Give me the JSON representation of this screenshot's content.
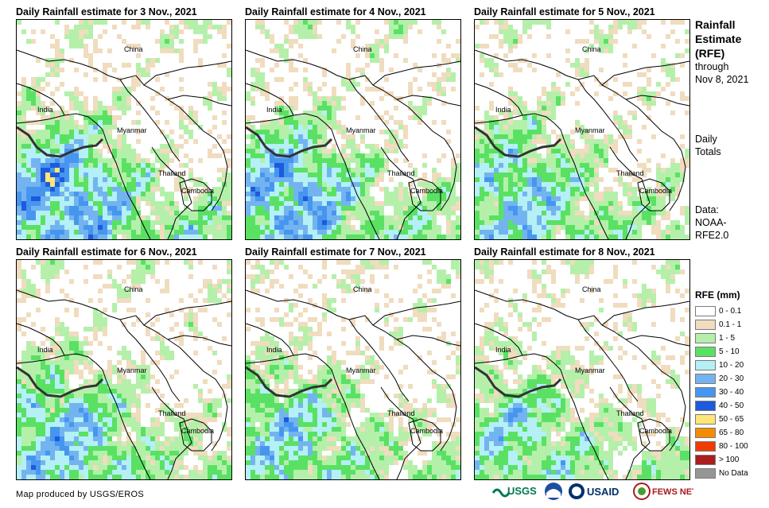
{
  "panels": [
    {
      "title": "Daily Rainfall estimate for 3 Nov., 2021",
      "seed": 3,
      "wet": 0.95
    },
    {
      "title": "Daily Rainfall estimate for 4 Nov., 2021",
      "seed": 4,
      "wet": 0.9
    },
    {
      "title": "Daily Rainfall estimate for 5 Nov., 2021",
      "seed": 5,
      "wet": 0.75
    },
    {
      "title": "Daily Rainfall estimate for 6 Nov., 2021",
      "seed": 6,
      "wet": 0.8
    },
    {
      "title": "Daily Rainfall estimate for 7 Nov., 2021",
      "seed": 7,
      "wet": 0.7
    },
    {
      "title": "Daily Rainfall estimate for 8 Nov., 2021",
      "seed": 8,
      "wet": 0.65
    }
  ],
  "map_labels": {
    "china": "China",
    "india": "India",
    "myanmar": "Myanmar",
    "thailand": "Thailand",
    "cambodia": "Cambodia"
  },
  "side": {
    "title_line1": "Rainfall",
    "title_line2": "Estimate",
    "title_line3": "(RFE)",
    "through_line1": "through",
    "through_line2": "Nov 8, 2021",
    "totals_line1": "Daily",
    "totals_line2": "Totals",
    "data_line1": "Data:",
    "data_line2": "NOAA-",
    "data_line3": "RFE2.0"
  },
  "legend": {
    "title": "RFE (mm)",
    "items": [
      {
        "label": "0 - 0.1",
        "color": "#ffffff"
      },
      {
        "label": "0.1 - 1",
        "color": "#f0dcbe"
      },
      {
        "label": "1 - 5",
        "color": "#b4f0aa"
      },
      {
        "label": "5 - 10",
        "color": "#5ae164"
      },
      {
        "label": "10 - 20",
        "color": "#b4f0f5"
      },
      {
        "label": "20 - 30",
        "color": "#73b4f0"
      },
      {
        "label": "30 - 40",
        "color": "#4696f0"
      },
      {
        "label": "40 - 50",
        "color": "#1e5adc"
      },
      {
        "label": "50 - 65",
        "color": "#ffe678"
      },
      {
        "label": "65 - 80",
        "color": "#f58c00"
      },
      {
        "label": "80 - 100",
        "color": "#f03c00"
      },
      {
        "label": "> 100",
        "color": "#aa1e1e"
      },
      {
        "label": "No Data",
        "color": "#969696"
      }
    ]
  },
  "credit": "Map produced by USGS/EROS",
  "logos": {
    "usgs": "USGS",
    "usaid": "USAID",
    "fewsnet": "FEWS NET"
  }
}
